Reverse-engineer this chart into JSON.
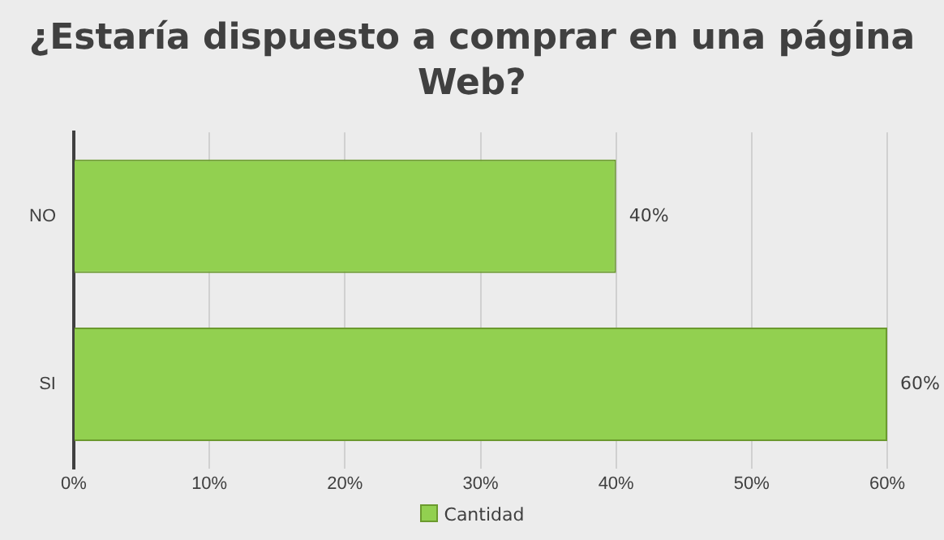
{
  "chart_data": {
    "type": "bar",
    "orientation": "horizontal",
    "title": "¿Estaría dispuesto a comprar en una página Web?",
    "categories": [
      "NO",
      "SI"
    ],
    "series": [
      {
        "name": "Cantidad",
        "color": "#92d050",
        "values": [
          40,
          60
        ],
        "value_labels": [
          "40%",
          "60%"
        ]
      }
    ],
    "xlim": [
      0,
      60
    ],
    "xticks": [
      {
        "value": 0,
        "label": "0%"
      },
      {
        "value": 10,
        "label": "10%"
      },
      {
        "value": 20,
        "label": "20%"
      },
      {
        "value": 30,
        "label": "30%"
      },
      {
        "value": 40,
        "label": "40%"
      },
      {
        "value": 50,
        "label": "50%"
      },
      {
        "value": 60,
        "label": "60%"
      }
    ],
    "grid": "x",
    "legend": "bottom"
  }
}
